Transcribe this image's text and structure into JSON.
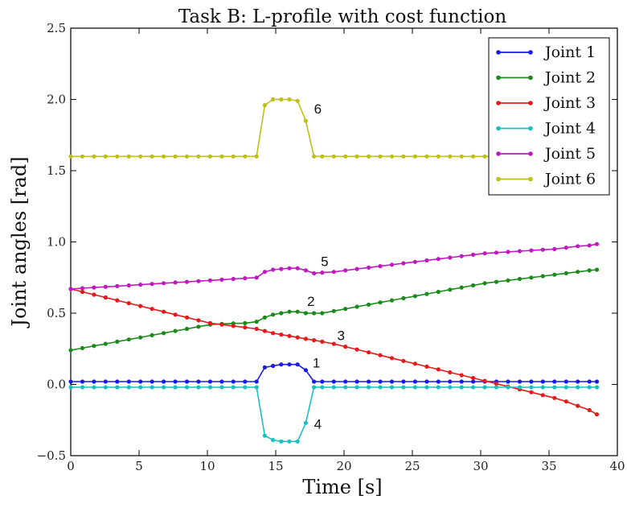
{
  "chart_data": {
    "type": "line",
    "title": "Task B: L-profile with cost function",
    "xlabel": "Time [s]",
    "ylabel": "Joint angles [rad]",
    "xlim": [
      0,
      40
    ],
    "ylim": [
      -0.5,
      2.5
    ],
    "xticks": [
      "0",
      "5",
      "10",
      "15",
      "20",
      "25",
      "30",
      "35",
      "40"
    ],
    "yticks": [
      "−0.5",
      "0.0",
      "0.5",
      "1.0",
      "1.5",
      "2.0",
      "2.5"
    ],
    "grid": false,
    "legend_position": "top-right",
    "series": [
      {
        "name": "Joint 1",
        "color": "#1a1ae6",
        "label": "1",
        "x": [
          0,
          0.85,
          1.7,
          2.55,
          3.4,
          4.25,
          5.1,
          5.95,
          6.8,
          7.65,
          8.5,
          9.35,
          10.2,
          11.05,
          11.9,
          12.75,
          13.6,
          14.2,
          14.8,
          15.4,
          16.0,
          16.6,
          17.2,
          17.8,
          18.4,
          19.25,
          20.1,
          20.95,
          21.8,
          22.65,
          23.5,
          24.35,
          25.2,
          26.05,
          26.9,
          27.75,
          28.6,
          29.45,
          30.3,
          31.15,
          32.0,
          32.85,
          33.7,
          34.55,
          35.4,
          36.25,
          37.1,
          37.95,
          38.5
        ],
        "y": [
          0.02,
          0.02,
          0.02,
          0.02,
          0.02,
          0.02,
          0.02,
          0.02,
          0.02,
          0.02,
          0.02,
          0.02,
          0.02,
          0.02,
          0.02,
          0.02,
          0.02,
          0.12,
          0.13,
          0.14,
          0.14,
          0.14,
          0.1,
          0.02,
          0.02,
          0.02,
          0.02,
          0.02,
          0.02,
          0.02,
          0.02,
          0.02,
          0.02,
          0.02,
          0.02,
          0.02,
          0.02,
          0.02,
          0.02,
          0.02,
          0.02,
          0.02,
          0.02,
          0.02,
          0.02,
          0.02,
          0.02,
          0.02,
          0.02
        ]
      },
      {
        "name": "Joint 2",
        "color": "#1a8a1a",
        "label": "2",
        "x": [
          0,
          0.85,
          1.7,
          2.55,
          3.4,
          4.25,
          5.1,
          5.95,
          6.8,
          7.65,
          8.5,
          9.35,
          10.2,
          11.05,
          11.9,
          12.75,
          13.6,
          14.2,
          14.8,
          15.4,
          16.0,
          16.6,
          17.2,
          17.8,
          18.4,
          19.25,
          20.1,
          20.95,
          21.8,
          22.65,
          23.5,
          24.35,
          25.2,
          26.05,
          26.9,
          27.75,
          28.6,
          29.45,
          30.3,
          31.15,
          32.0,
          32.85,
          33.7,
          34.55,
          35.4,
          36.25,
          37.1,
          37.95,
          38.5
        ],
        "y": [
          0.24,
          0.255,
          0.27,
          0.285,
          0.3,
          0.315,
          0.33,
          0.345,
          0.36,
          0.375,
          0.39,
          0.405,
          0.42,
          0.425,
          0.428,
          0.43,
          0.44,
          0.47,
          0.49,
          0.5,
          0.51,
          0.51,
          0.5,
          0.5,
          0.5,
          0.515,
          0.53,
          0.545,
          0.56,
          0.575,
          0.59,
          0.605,
          0.62,
          0.635,
          0.65,
          0.665,
          0.68,
          0.695,
          0.71,
          0.72,
          0.73,
          0.74,
          0.75,
          0.76,
          0.77,
          0.78,
          0.79,
          0.8,
          0.805
        ]
      },
      {
        "name": "Joint 3",
        "color": "#e61a1a",
        "label": "3",
        "x": [
          0,
          0.85,
          1.7,
          2.55,
          3.4,
          4.25,
          5.1,
          5.95,
          6.8,
          7.65,
          8.5,
          9.35,
          10.2,
          11.05,
          11.9,
          12.75,
          13.6,
          14.2,
          14.8,
          15.4,
          16.0,
          16.6,
          17.2,
          17.8,
          18.4,
          19.25,
          20.1,
          20.95,
          21.8,
          22.65,
          23.5,
          24.35,
          25.2,
          26.05,
          26.9,
          27.75,
          28.6,
          29.45,
          30.3,
          31.15,
          32.0,
          32.85,
          33.7,
          34.55,
          35.4,
          36.25,
          37.1,
          37.95,
          38.5
        ],
        "y": [
          0.67,
          0.65,
          0.63,
          0.61,
          0.59,
          0.57,
          0.55,
          0.53,
          0.51,
          0.49,
          0.47,
          0.45,
          0.43,
          0.42,
          0.41,
          0.4,
          0.39,
          0.375,
          0.36,
          0.35,
          0.34,
          0.33,
          0.32,
          0.31,
          0.3,
          0.285,
          0.265,
          0.245,
          0.225,
          0.205,
          0.185,
          0.165,
          0.145,
          0.125,
          0.105,
          0.085,
          0.065,
          0.045,
          0.025,
          0.005,
          -0.015,
          -0.035,
          -0.055,
          -0.075,
          -0.095,
          -0.12,
          -0.15,
          -0.18,
          -0.21
        ]
      },
      {
        "name": "Joint 4",
        "color": "#1abfbf",
        "label": "4",
        "x": [
          0,
          0.85,
          1.7,
          2.55,
          3.4,
          4.25,
          5.1,
          5.95,
          6.8,
          7.65,
          8.5,
          9.35,
          10.2,
          11.05,
          11.9,
          12.75,
          13.6,
          14.2,
          14.8,
          15.4,
          16.0,
          16.6,
          17.2,
          17.8,
          18.4,
          19.25,
          20.1,
          20.95,
          21.8,
          22.65,
          23.5,
          24.35,
          25.2,
          26.05,
          26.9,
          27.75,
          28.6,
          29.45,
          30.3,
          31.15,
          32.0,
          32.85,
          33.7,
          34.55,
          35.4,
          36.25,
          37.1,
          37.95,
          38.5
        ],
        "y": [
          -0.02,
          -0.02,
          -0.02,
          -0.02,
          -0.02,
          -0.02,
          -0.02,
          -0.02,
          -0.02,
          -0.02,
          -0.02,
          -0.02,
          -0.02,
          -0.02,
          -0.02,
          -0.02,
          -0.02,
          -0.36,
          -0.39,
          -0.4,
          -0.4,
          -0.4,
          -0.27,
          -0.02,
          -0.02,
          -0.02,
          -0.02,
          -0.02,
          -0.02,
          -0.02,
          -0.02,
          -0.02,
          -0.02,
          -0.02,
          -0.02,
          -0.02,
          -0.02,
          -0.02,
          -0.02,
          -0.02,
          -0.02,
          -0.02,
          -0.02,
          -0.02,
          -0.02,
          -0.02,
          -0.02,
          -0.02,
          -0.02
        ]
      },
      {
        "name": "Joint 5",
        "color": "#bf1abf",
        "label": "5",
        "x": [
          0,
          0.85,
          1.7,
          2.55,
          3.4,
          4.25,
          5.1,
          5.95,
          6.8,
          7.65,
          8.5,
          9.35,
          10.2,
          11.05,
          11.9,
          12.75,
          13.6,
          14.2,
          14.8,
          15.4,
          16.0,
          16.6,
          17.2,
          17.8,
          18.4,
          19.25,
          20.1,
          20.95,
          21.8,
          22.65,
          23.5,
          24.35,
          25.2,
          26.05,
          26.9,
          27.75,
          28.6,
          29.45,
          30.3,
          31.15,
          32.0,
          32.85,
          33.7,
          34.55,
          35.4,
          36.25,
          37.1,
          37.95,
          38.5
        ],
        "y": [
          0.67,
          0.675,
          0.68,
          0.685,
          0.69,
          0.695,
          0.7,
          0.705,
          0.71,
          0.715,
          0.72,
          0.725,
          0.73,
          0.735,
          0.74,
          0.745,
          0.75,
          0.79,
          0.805,
          0.81,
          0.815,
          0.815,
          0.8,
          0.78,
          0.785,
          0.79,
          0.8,
          0.81,
          0.82,
          0.83,
          0.84,
          0.85,
          0.86,
          0.87,
          0.88,
          0.89,
          0.9,
          0.91,
          0.92,
          0.925,
          0.93,
          0.935,
          0.94,
          0.945,
          0.95,
          0.96,
          0.97,
          0.975,
          0.985
        ]
      },
      {
        "name": "Joint 6",
        "color": "#bfbf1a",
        "label": "6",
        "x": [
          0,
          0.85,
          1.7,
          2.55,
          3.4,
          4.25,
          5.1,
          5.95,
          6.8,
          7.65,
          8.5,
          9.35,
          10.2,
          11.05,
          11.9,
          12.75,
          13.6,
          14.2,
          14.8,
          15.4,
          16.0,
          16.6,
          17.2,
          17.8,
          18.4,
          19.25,
          20.1,
          20.95,
          21.8,
          22.65,
          23.5,
          24.35,
          25.2,
          26.05,
          26.9,
          27.75,
          28.6,
          29.45,
          30.3,
          31.15,
          32.0,
          32.85,
          33.7,
          34.55,
          35.4,
          36.25,
          37.1,
          37.95,
          38.5
        ],
        "y": [
          1.6,
          1.6,
          1.6,
          1.6,
          1.6,
          1.6,
          1.6,
          1.6,
          1.6,
          1.6,
          1.6,
          1.6,
          1.6,
          1.6,
          1.6,
          1.6,
          1.6,
          1.96,
          2.0,
          2.0,
          2.0,
          1.99,
          1.85,
          1.6,
          1.6,
          1.6,
          1.6,
          1.6,
          1.6,
          1.6,
          1.6,
          1.6,
          1.6,
          1.6,
          1.6,
          1.6,
          1.6,
          1.6,
          1.6,
          1.6,
          1.6,
          1.6,
          1.6,
          1.6,
          1.6,
          1.6,
          1.6,
          1.6,
          1.6
        ]
      }
    ],
    "annotations": [
      {
        "text": "1",
        "x": 17.7,
        "y": 0.12
      },
      {
        "text": "2",
        "x": 17.3,
        "y": 0.55
      },
      {
        "text": "3",
        "x": 19.5,
        "y": 0.31
      },
      {
        "text": "4",
        "x": 17.8,
        "y": -0.31
      },
      {
        "text": "5",
        "x": 18.3,
        "y": 0.83
      },
      {
        "text": "6",
        "x": 17.8,
        "y": 1.9
      }
    ]
  }
}
